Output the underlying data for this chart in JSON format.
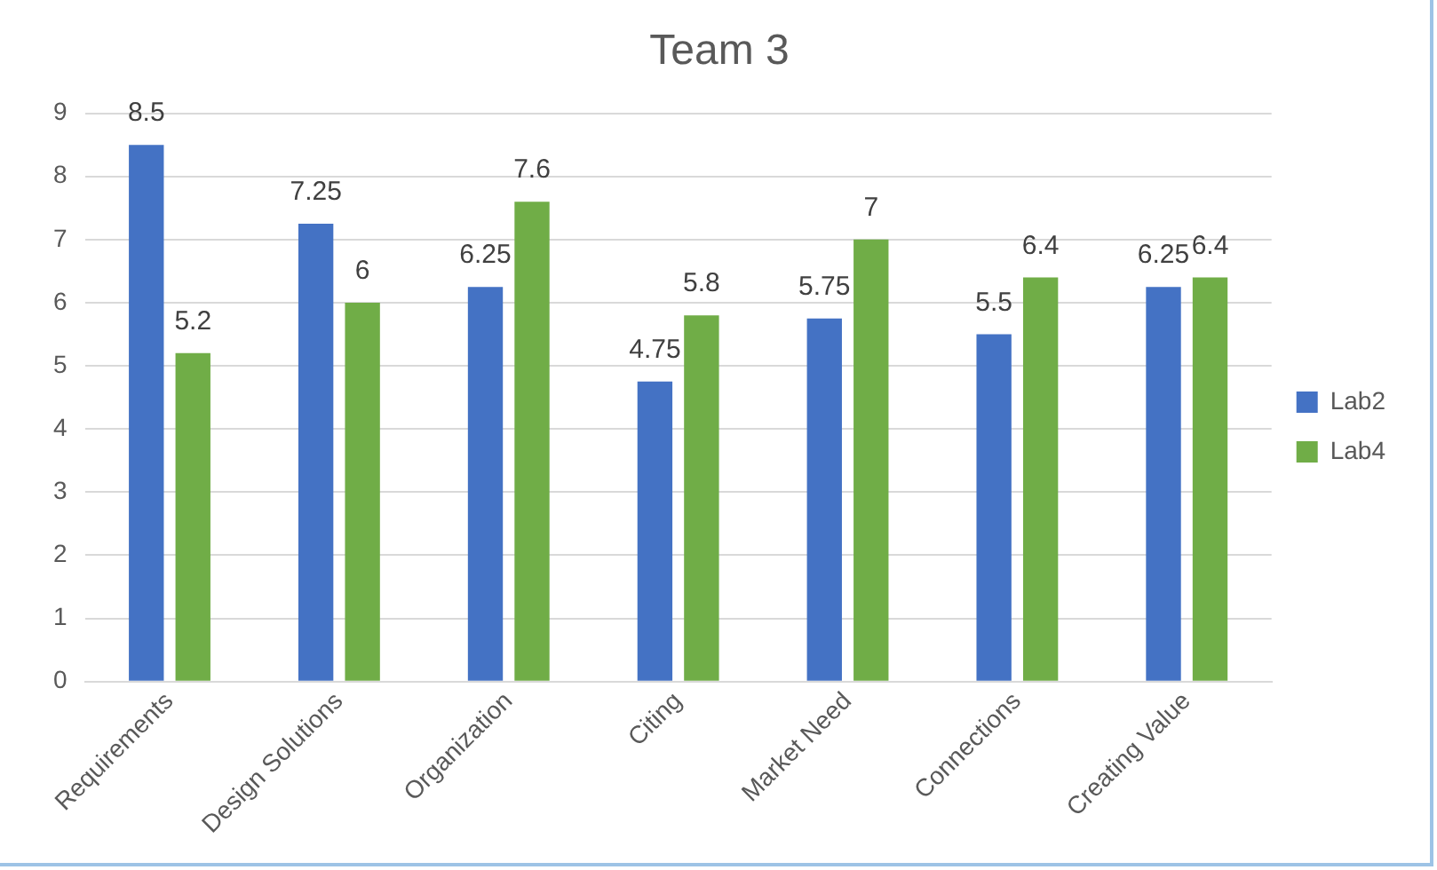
{
  "chart_data": {
    "type": "bar",
    "title": "Team 3",
    "categories": [
      "Requirements",
      "Design Solutions",
      "Organization",
      "Citing",
      "Market Need",
      "Connections",
      "Creating Value"
    ],
    "series": [
      {
        "name": "Lab2",
        "color": "#4472c4",
        "values": [
          8.5,
          7.25,
          6.25,
          4.75,
          5.75,
          5.5,
          6.25
        ]
      },
      {
        "name": "Lab4",
        "color": "#70ad47",
        "values": [
          5.2,
          6,
          7.6,
          5.8,
          7,
          6.4,
          6.4
        ]
      }
    ],
    "ylim": [
      0,
      9
    ],
    "yticks": [
      0,
      1,
      2,
      3,
      4,
      5,
      6,
      7,
      8,
      9
    ],
    "grid": "y",
    "legend": "right",
    "data_labels": true
  }
}
